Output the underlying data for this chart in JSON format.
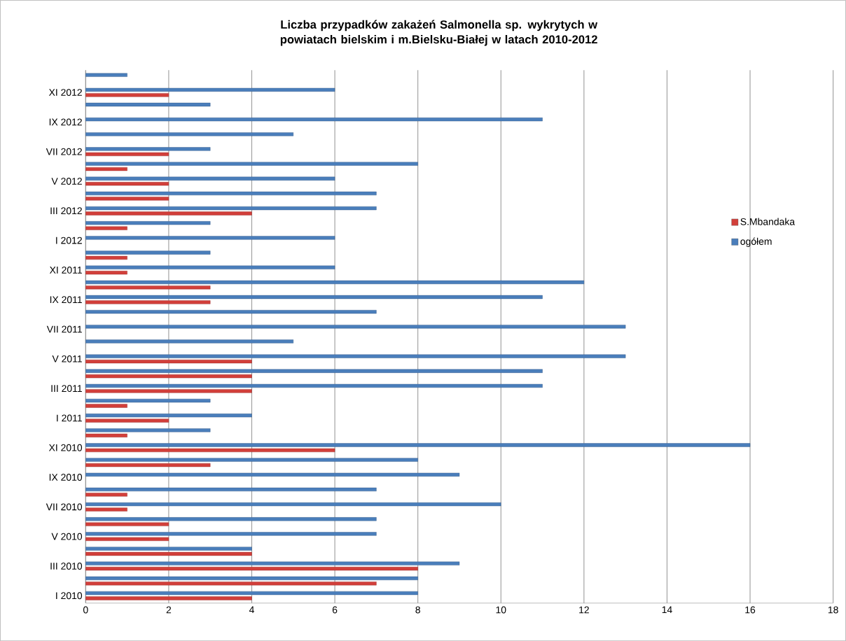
{
  "chart_data": {
    "type": "bar",
    "orientation": "horizontal",
    "title": "Liczba przypadków zakażeń Salmonella sp. wykrytych w powiatach bielskim i m.Bielsku-Białej w latach 2010-2012",
    "categories": [
      null,
      "XI 2012",
      null,
      "IX 2012",
      null,
      "VII 2012",
      null,
      "V 2012",
      null,
      "III 2012",
      null,
      "I 2012",
      null,
      "XI 2011",
      null,
      "IX 2011",
      null,
      "VII 2011",
      null,
      "V 2011",
      null,
      "III 2011",
      null,
      "I 2011",
      null,
      "XI 2010",
      null,
      "IX 2010",
      null,
      "VII 2010",
      null,
      "V 2010",
      null,
      "III 2010",
      null,
      "I 2010"
    ],
    "series": [
      {
        "name": "S.Mbandaka",
        "color": "#d23f3a",
        "values": [
          null,
          2,
          null,
          null,
          null,
          2,
          1,
          2,
          2,
          4,
          1,
          null,
          1,
          1,
          3,
          3,
          null,
          null,
          null,
          4,
          4,
          4,
          1,
          2,
          1,
          6,
          3,
          null,
          1,
          1,
          2,
          2,
          4,
          8,
          7,
          4
        ]
      },
      {
        "name": "ogółem",
        "color": "#4a7ebb",
        "values": [
          1,
          6,
          3,
          11,
          5,
          3,
          8,
          6,
          7,
          7,
          3,
          6,
          3,
          6,
          12,
          11,
          7,
          13,
          5,
          13,
          11,
          11,
          3,
          4,
          3,
          16,
          8,
          9,
          7,
          10,
          7,
          7,
          4,
          9,
          8,
          8
        ]
      }
    ],
    "xlim": [
      0,
      18
    ],
    "xticks": [
      0,
      2,
      4,
      6,
      8,
      10,
      12,
      14,
      16,
      18
    ],
    "grid": "x",
    "legend": "right"
  }
}
